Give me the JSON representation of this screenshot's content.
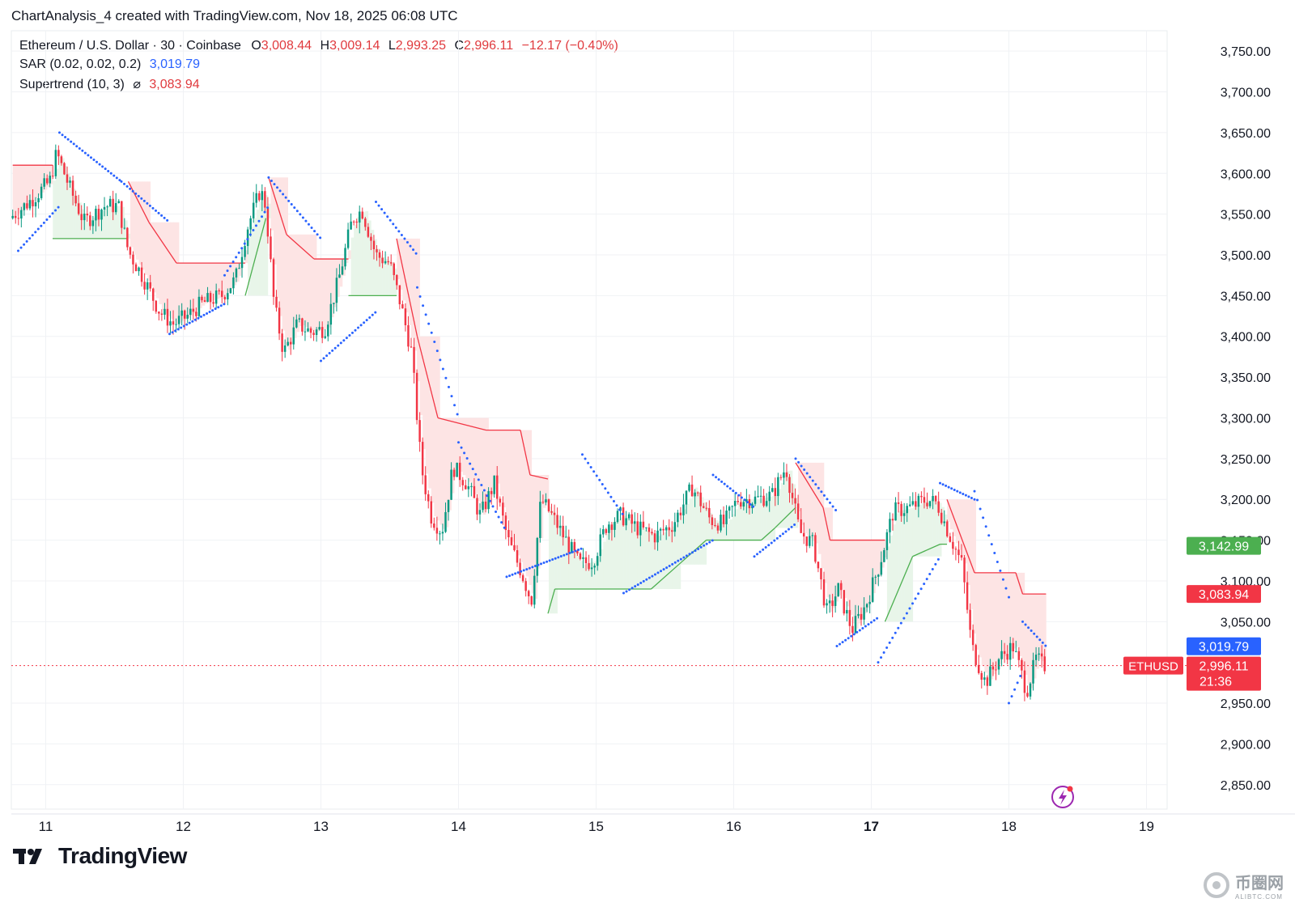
{
  "header": {
    "title": "ChartAnalysis_4 created with TradingView.com, Nov 18, 2025 06:08 UTC"
  },
  "legend": {
    "symbol": "Ethereum / U.S. Dollar · 30 · Coinbase",
    "open_label": "O",
    "open": "3,008.44",
    "high_label": "H",
    "high": "3,009.14",
    "low_label": "L",
    "low": "2,993.25",
    "close_label": "C",
    "close": "2,996.11",
    "change": "−12.17 (−0.40%)",
    "sar_label": "SAR (0.02, 0.02, 0.2)",
    "sar_value": "3,019.79",
    "supertrend_label": "Supertrend (10, 3)",
    "supertrend_icon": "⌀",
    "supertrend_value": "3,083.94"
  },
  "price_labels": {
    "symbol_tag": "ETHUSD",
    "last_price": "2,996.11",
    "countdown": "21:36",
    "sar": "3,019.79",
    "supertrend_up": "3,142.99",
    "supertrend_down": "3,083.94"
  },
  "brand": {
    "name": "TradingView"
  },
  "watermark": {
    "text": "币圈网",
    "sub": "ALIBTC.COM"
  },
  "colors": {
    "up": "#089981",
    "down": "#f23645",
    "sar": "#2962ff",
    "st_up": "#4caf50",
    "st_down": "#f23645",
    "fill_up": "#e8f5e9",
    "fill_down": "#fde4e4"
  },
  "chart_data": {
    "type": "candlestick",
    "symbol": "ETHUSD",
    "interval": "30",
    "x_ticks": [
      "11",
      "12",
      "13",
      "14",
      "15",
      "16",
      "17",
      "18",
      "19"
    ],
    "y_ticks": [
      "3,750.00",
      "3,700.00",
      "3,650.00",
      "3,600.00",
      "3,550.00",
      "3,500.00",
      "3,450.00",
      "3,400.00",
      "3,350.00",
      "3,300.00",
      "3,250.00",
      "3,200.00",
      "3,150.00",
      "3,100.00",
      "3,050.00",
      "2,950.00",
      "2,900.00",
      "2,850.00"
    ],
    "ylim": [
      2820,
      3775
    ],
    "xlim_days": [
      10.75,
      19.15
    ],
    "price_path": [
      [
        10.76,
        3545
      ],
      [
        10.9,
        3565
      ],
      [
        11.05,
        3590
      ],
      [
        11.1,
        3625
      ],
      [
        11.2,
        3580
      ],
      [
        11.3,
        3540
      ],
      [
        11.45,
        3560
      ],
      [
        11.55,
        3560
      ],
      [
        11.62,
        3505
      ],
      [
        11.72,
        3475
      ],
      [
        11.85,
        3430
      ],
      [
        11.95,
        3415
      ],
      [
        12.05,
        3425
      ],
      [
        12.15,
        3440
      ],
      [
        12.3,
        3450
      ],
      [
        12.4,
        3470
      ],
      [
        12.48,
        3530
      ],
      [
        12.58,
        3580
      ],
      [
        12.62,
        3560
      ],
      [
        12.68,
        3440
      ],
      [
        12.75,
        3380
      ],
      [
        12.85,
        3415
      ],
      [
        12.95,
        3405
      ],
      [
        13.05,
        3410
      ],
      [
        13.15,
        3470
      ],
      [
        13.25,
        3545
      ],
      [
        13.32,
        3555
      ],
      [
        13.42,
        3500
      ],
      [
        13.52,
        3490
      ],
      [
        13.6,
        3440
      ],
      [
        13.68,
        3380
      ],
      [
        13.75,
        3240
      ],
      [
        13.82,
        3180
      ],
      [
        13.9,
        3160
      ],
      [
        13.98,
        3240
      ],
      [
        14.08,
        3220
      ],
      [
        14.18,
        3180
      ],
      [
        14.28,
        3220
      ],
      [
        14.38,
        3150
      ],
      [
        14.48,
        3110
      ],
      [
        14.55,
        3075
      ],
      [
        14.62,
        3200
      ],
      [
        14.7,
        3180
      ],
      [
        14.8,
        3150
      ],
      [
        14.9,
        3120
      ],
      [
        15.0,
        3125
      ],
      [
        15.1,
        3170
      ],
      [
        15.2,
        3180
      ],
      [
        15.32,
        3165
      ],
      [
        15.45,
        3155
      ],
      [
        15.58,
        3170
      ],
      [
        15.72,
        3215
      ],
      [
        15.85,
        3175
      ],
      [
        15.95,
        3170
      ],
      [
        16.05,
        3200
      ],
      [
        16.18,
        3200
      ],
      [
        16.3,
        3205
      ],
      [
        16.4,
        3240
      ],
      [
        16.5,
        3160
      ],
      [
        16.6,
        3145
      ],
      [
        16.7,
        3060
      ],
      [
        16.78,
        3090
      ],
      [
        16.88,
        3040
      ],
      [
        16.98,
        3070
      ],
      [
        17.08,
        3120
      ],
      [
        17.18,
        3185
      ],
      [
        17.3,
        3190
      ],
      [
        17.42,
        3200
      ],
      [
        17.5,
        3195
      ],
      [
        17.58,
        3160
      ],
      [
        17.68,
        3120
      ],
      [
        17.75,
        3020
      ],
      [
        17.85,
        2975
      ],
      [
        17.95,
        3005
      ],
      [
        18.05,
        3020
      ],
      [
        18.15,
        2965
      ],
      [
        18.22,
        3005
      ],
      [
        18.27,
        2996
      ]
    ],
    "supertrend": [
      [
        10.76,
        3610,
        "down"
      ],
      [
        11.05,
        3610,
        "down"
      ],
      [
        11.05,
        3520,
        "up"
      ],
      [
        11.6,
        3520,
        "up"
      ],
      [
        11.6,
        3590,
        "down"
      ],
      [
        11.75,
        3540,
        "down"
      ],
      [
        11.95,
        3490,
        "down"
      ],
      [
        12.45,
        3490,
        "down"
      ],
      [
        12.45,
        3450,
        "up"
      ],
      [
        12.6,
        3545,
        "up"
      ],
      [
        12.62,
        3595,
        "down"
      ],
      [
        12.75,
        3525,
        "down"
      ],
      [
        12.95,
        3495,
        "down"
      ],
      [
        13.2,
        3495,
        "down"
      ],
      [
        13.2,
        3450,
        "up"
      ],
      [
        13.55,
        3450,
        "up"
      ],
      [
        13.55,
        3520,
        "down"
      ],
      [
        13.7,
        3400,
        "down"
      ],
      [
        13.85,
        3300,
        "down"
      ],
      [
        14.2,
        3285,
        "down"
      ],
      [
        14.45,
        3285,
        "down"
      ],
      [
        14.52,
        3230,
        "down"
      ],
      [
        14.65,
        3225,
        "down"
      ],
      [
        14.65,
        3060,
        "up"
      ],
      [
        14.7,
        3090,
        "up"
      ],
      [
        15.4,
        3090,
        "up"
      ],
      [
        15.6,
        3120,
        "up"
      ],
      [
        15.8,
        3150,
        "up"
      ],
      [
        16.2,
        3150,
        "up"
      ],
      [
        16.3,
        3165,
        "up"
      ],
      [
        16.45,
        3190,
        "up"
      ],
      [
        16.45,
        3245,
        "down"
      ],
      [
        16.65,
        3190,
        "down"
      ],
      [
        16.7,
        3150,
        "down"
      ],
      [
        17.1,
        3150,
        "down"
      ],
      [
        17.1,
        3050,
        "up"
      ],
      [
        17.3,
        3130,
        "up"
      ],
      [
        17.5,
        3145,
        "up"
      ],
      [
        17.55,
        3145,
        "up"
      ],
      [
        17.55,
        3200,
        "down"
      ],
      [
        17.75,
        3110,
        "down"
      ],
      [
        18.05,
        3110,
        "down"
      ],
      [
        18.1,
        3083.94,
        "down"
      ],
      [
        18.27,
        3083.94,
        "down"
      ]
    ],
    "sar": [
      [
        10.8,
        3505,
        3560
      ],
      [
        11.1,
        3650,
        3590
      ],
      [
        11.55,
        3590,
        3540
      ],
      [
        11.9,
        3403,
        3440
      ],
      [
        12.3,
        3475,
        3560
      ],
      [
        12.62,
        3595,
        3520
      ],
      [
        13.0,
        3370,
        3430
      ],
      [
        13.4,
        3565,
        3500
      ],
      [
        13.7,
        3460,
        3300
      ],
      [
        14.0,
        3270,
        3160
      ],
      [
        14.35,
        3105,
        3140
      ],
      [
        14.9,
        3255,
        3180
      ],
      [
        15.2,
        3085,
        3150
      ],
      [
        15.85,
        3230,
        3190
      ],
      [
        16.15,
        3130,
        3170
      ],
      [
        16.45,
        3250,
        3185
      ],
      [
        16.75,
        3020,
        3055
      ],
      [
        17.05,
        3000,
        3130
      ],
      [
        17.5,
        3220,
        3200
      ],
      [
        17.75,
        3210,
        3080
      ],
      [
        18.0,
        2950,
        2990
      ],
      [
        18.1,
        3050,
        3019.79
      ]
    ],
    "last_price": 2996.11,
    "sar_value": 3019.79,
    "supertrend_value": 3083.94,
    "supertrend_up_value": 3142.99
  }
}
